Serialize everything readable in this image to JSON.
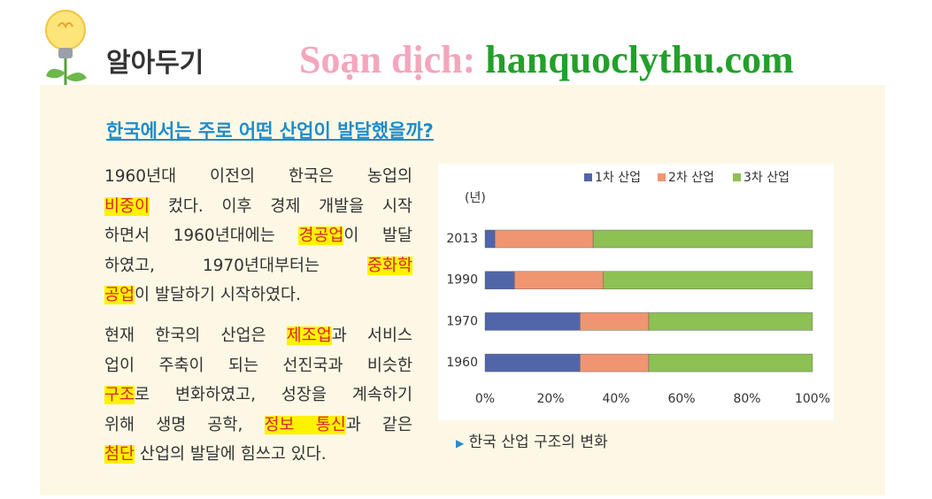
{
  "header": {
    "title": "알아두기",
    "watermark": [
      "Soạn dịch:",
      "hanquoclythu.com"
    ]
  },
  "section": {
    "heading": "한국에서는 주로 어떤 산업이 발달했을까?",
    "paragraphs": [
      [
        [
          {
            "text": "1960년대 이전의 한국은 농업의",
            "highlight": false
          }
        ],
        [
          {
            "text": "비중이",
            "highlight": true
          },
          {
            "text": " 컸다. 이후 경제 개발을 시작",
            "highlight": false
          }
        ],
        [
          {
            "text": "하면서 1960년대에는 ",
            "highlight": false
          },
          {
            "text": "경공업",
            "highlight": true
          },
          {
            "text": "이 발달",
            "highlight": false
          }
        ],
        [
          {
            "text": "하였고, 1970년대부터는 ",
            "highlight": false
          },
          {
            "text": "중화학",
            "highlight": true
          }
        ],
        [
          {
            "text": "공업",
            "highlight": true
          },
          {
            "text": "이 발달하기 시작하였다.",
            "highlight": false
          }
        ]
      ],
      [
        [
          {
            "text": "현재 한국의 산업은 ",
            "highlight": false
          },
          {
            "text": "제조업",
            "highlight": true
          },
          {
            "text": "과 서비스",
            "highlight": false
          }
        ],
        [
          {
            "text": "업이 주축이 되는 선진국과 비슷한",
            "highlight": false
          }
        ],
        [
          {
            "text": "구조",
            "highlight": true
          },
          {
            "text": "로 변화하였고, 성장을 계속하기",
            "highlight": false
          }
        ],
        [
          {
            "text": "위해 생명 공학, ",
            "highlight": false
          },
          {
            "text": "정보 통신",
            "highlight": true
          },
          {
            "text": "과 같은",
            "highlight": false
          }
        ],
        [
          {
            "text": "첨단",
            "highlight": true
          },
          {
            "text": " 산업의 발달에 힘쓰고 있다.",
            "highlight": false
          }
        ]
      ]
    ]
  },
  "chart_data": {
    "type": "bar",
    "orientation": "horizontal",
    "stacked": true,
    "y_axis_label": "(년)",
    "caption": "한국 산업 구조의 변화",
    "categories": [
      "2013",
      "1990",
      "1970",
      "1960"
    ],
    "series": [
      {
        "name": "1차 산업",
        "color": "#5166a9",
        "values": [
          3,
          9,
          29,
          29
        ]
      },
      {
        "name": "2차 산업",
        "color": "#ef9572",
        "values": [
          30,
          27,
          21,
          21
        ]
      },
      {
        "name": "3차 산업",
        "color": "#8dc153",
        "values": [
          67,
          64,
          50,
          50
        ]
      }
    ],
    "xlim": [
      0,
      100
    ],
    "xticks": [
      {
        "value": 0,
        "label": "0%"
      },
      {
        "value": 20,
        "label": "20%"
      },
      {
        "value": 40,
        "label": "40%"
      },
      {
        "value": 60,
        "label": "60%"
      },
      {
        "value": 80,
        "label": "80%"
      },
      {
        "value": 100,
        "label": "100%"
      }
    ],
    "grid": false,
    "legend": "top-right"
  }
}
